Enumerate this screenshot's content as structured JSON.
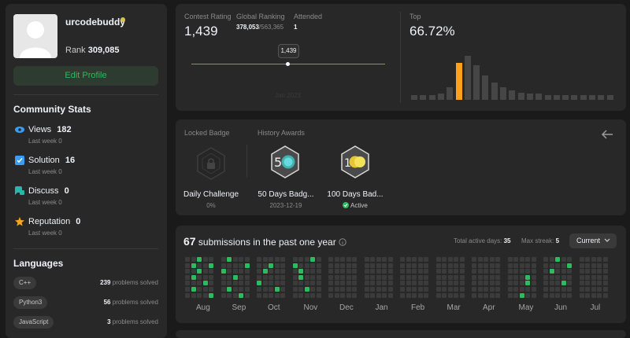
{
  "profile": {
    "username": "urcodebuddy",
    "rank_label": "Rank",
    "rank_value": "309,085",
    "edit_label": "Edit Profile"
  },
  "community": {
    "title": "Community Stats",
    "items": [
      {
        "label": "Views",
        "value": "182",
        "sub_label": "Last week",
        "sub_value": "0",
        "color": "#3b9cf5",
        "icon": "eye-icon"
      },
      {
        "label": "Solution",
        "value": "16",
        "sub_label": "Last week",
        "sub_value": "0",
        "color": "#3b9cf5",
        "icon": "check-square-icon"
      },
      {
        "label": "Discuss",
        "value": "0",
        "sub_label": "Last week",
        "sub_value": "0",
        "color": "#2cb5a8",
        "icon": "chat-icon"
      },
      {
        "label": "Reputation",
        "value": "0",
        "sub_label": "Last week",
        "sub_value": "0",
        "color": "#f5a623",
        "icon": "star-icon"
      }
    ]
  },
  "languages": {
    "title": "Languages",
    "items": [
      {
        "name": "C++",
        "count": "239",
        "suffix": "problems solved"
      },
      {
        "name": "Python3",
        "count": "56",
        "suffix": "problems solved"
      },
      {
        "name": "JavaScript",
        "count": "3",
        "suffix": "problems solved"
      }
    ]
  },
  "contest": {
    "rating_label": "Contest Rating",
    "rating_value": "1,439",
    "global_label": "Global Ranking",
    "global_value": "378,053",
    "global_total": "/563,365",
    "attended_label": "Attended",
    "attended_value": "1",
    "tooltip": "1,439",
    "date_label": "Jan 2023",
    "top_label": "Top",
    "top_value": "66.72%"
  },
  "histogram": {
    "values": [
      4,
      4,
      4,
      5,
      10,
      30,
      36,
      28,
      20,
      14,
      10,
      8,
      6,
      5,
      5,
      4,
      4,
      4,
      4,
      4,
      4,
      4,
      4
    ],
    "highlight_index": 5,
    "color_bar": "#464646",
    "color_highlight": "#ffa116"
  },
  "badges": {
    "locked_label": "Locked Badge",
    "history_label": "History Awards",
    "items": [
      {
        "name": "Daily Challenge",
        "sub": "0%",
        "icon": "locked-badge-icon"
      },
      {
        "name": "50 Days Badg...",
        "sub": "2023-12-19",
        "icon": "50-days-badge-icon"
      },
      {
        "name": "100 Days Bad...",
        "sub": "Active",
        "icon": "100-days-badge-icon"
      }
    ]
  },
  "submissions": {
    "count": "67",
    "text": "submissions in the past one year",
    "active_label": "Total active days:",
    "active_value": "35",
    "streak_label": "Max streak:",
    "streak_value": "5",
    "dropdown": "Current",
    "months": [
      "Aug",
      "Sep",
      "Oct",
      "Nov",
      "Dec",
      "Jan",
      "Feb",
      "Mar",
      "Apr",
      "May",
      "Jun",
      "Jul"
    ],
    "active_color": "#2cbb5d",
    "inactive_color": "#3b3b3b"
  }
}
